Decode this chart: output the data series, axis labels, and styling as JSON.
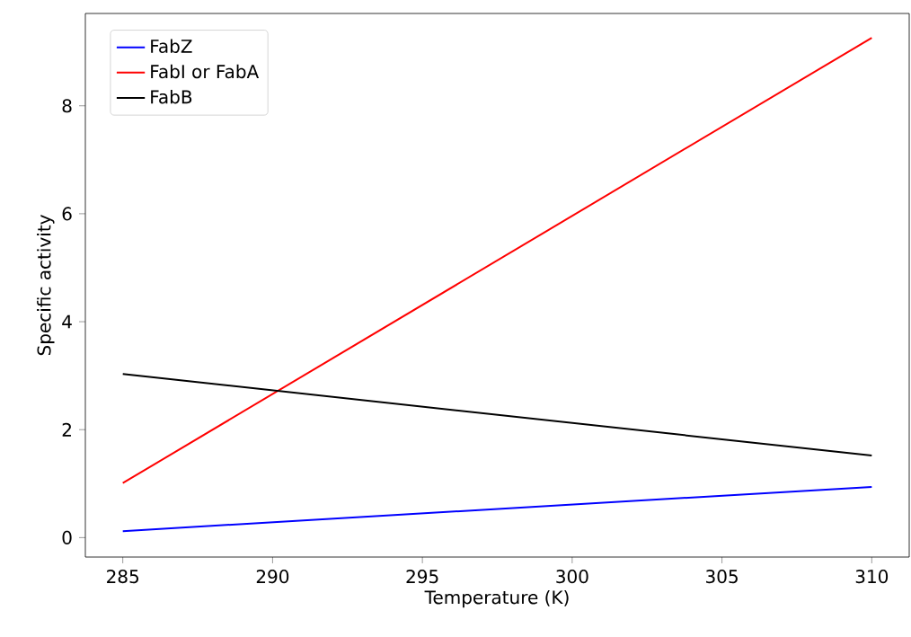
{
  "chart_data": {
    "type": "line",
    "xlabel": "Temperature (K)",
    "ylabel": "Specific activity",
    "x": [
      285,
      310
    ],
    "series": [
      {
        "name": "FabZ",
        "color": "#0000ff",
        "values": [
          0.12,
          0.94
        ]
      },
      {
        "name": "FabI or FabA",
        "color": "#ff0000",
        "values": [
          1.01,
          9.26
        ]
      },
      {
        "name": "FabB",
        "color": "#000000",
        "values": [
          3.03,
          1.52
        ]
      }
    ],
    "xlim": [
      283.75,
      311.25
    ],
    "ylim": [
      -0.36,
      9.71
    ],
    "xticks": [
      285,
      290,
      295,
      300,
      305,
      310
    ],
    "yticks": [
      0,
      2,
      4,
      6,
      8
    ],
    "legend": "top left",
    "marker": "none",
    "line_style": "solid",
    "grid": false
  }
}
